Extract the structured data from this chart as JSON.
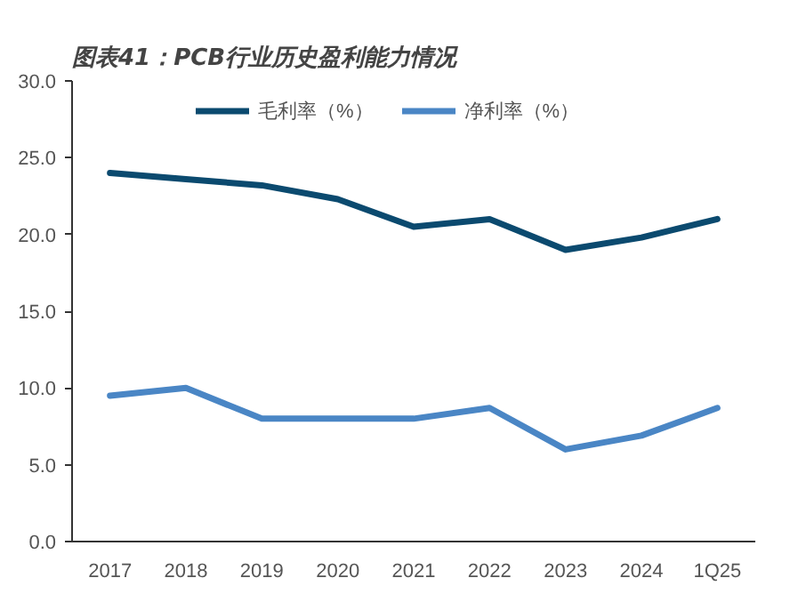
{
  "chart_data": {
    "type": "line",
    "title": "图表41：PCB行业历史盈利能力情况",
    "categories": [
      "2017",
      "2018",
      "2019",
      "2020",
      "2021",
      "2022",
      "2023",
      "2024",
      "1Q25"
    ],
    "series": [
      {
        "name": "毛利率（%）",
        "color": "#0b4a6f",
        "values": [
          24.0,
          23.6,
          23.2,
          22.3,
          20.5,
          21.0,
          19.0,
          19.8,
          21.0
        ]
      },
      {
        "name": "净利率（%）",
        "color": "#4a86c5",
        "values": [
          9.5,
          10.0,
          8.0,
          8.0,
          8.0,
          8.7,
          6.0,
          6.9,
          8.7
        ]
      }
    ],
    "ylim": [
      0,
      30
    ],
    "yticks": [
      {
        "value": 0,
        "label": "0.0"
      },
      {
        "value": 5,
        "label": "5.0"
      },
      {
        "value": 10,
        "label": "10.0"
      },
      {
        "value": 15,
        "label": "15.0"
      },
      {
        "value": 20,
        "label": "20.0"
      },
      {
        "value": 25,
        "label": "25.0"
      },
      {
        "value": 30,
        "label": "30.0"
      }
    ],
    "grid": false,
    "legend": "top",
    "line_style": "solid",
    "marker": "none"
  }
}
